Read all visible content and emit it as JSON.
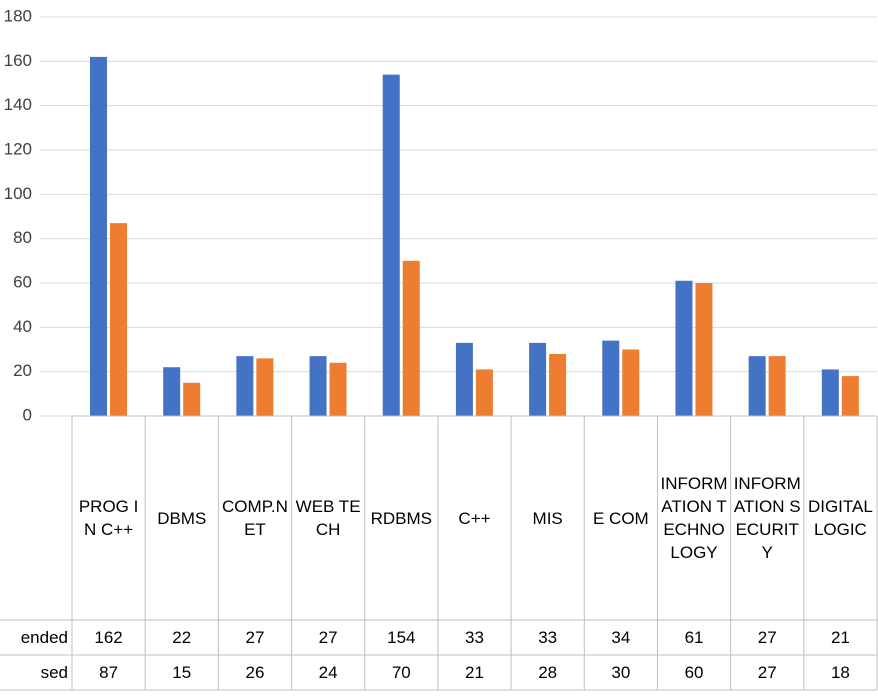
{
  "chart_data": {
    "type": "bar",
    "categories": [
      "PROG IN C++",
      "DBMS",
      "COMP.NET",
      "WEB TECH",
      "RDBMS",
      "C++",
      "MIS",
      "E COM",
      "INFORMATION TECHNOLOGY",
      "INFORMATION SECURITY",
      "DIGITAL LOGIC"
    ],
    "series": [
      {
        "name": "ended",
        "color": "#4472c4",
        "values": [
          162,
          22,
          27,
          27,
          154,
          33,
          33,
          34,
          61,
          27,
          21
        ]
      },
      {
        "name": "sed",
        "color": "#ed7d31",
        "values": [
          87,
          15,
          26,
          24,
          70,
          21,
          28,
          30,
          60,
          27,
          18
        ]
      }
    ],
    "ylim": [
      0,
      180
    ],
    "yticks": [
      0,
      20,
      40,
      60,
      80,
      100,
      120,
      140,
      160,
      180
    ],
    "grid": true
  }
}
